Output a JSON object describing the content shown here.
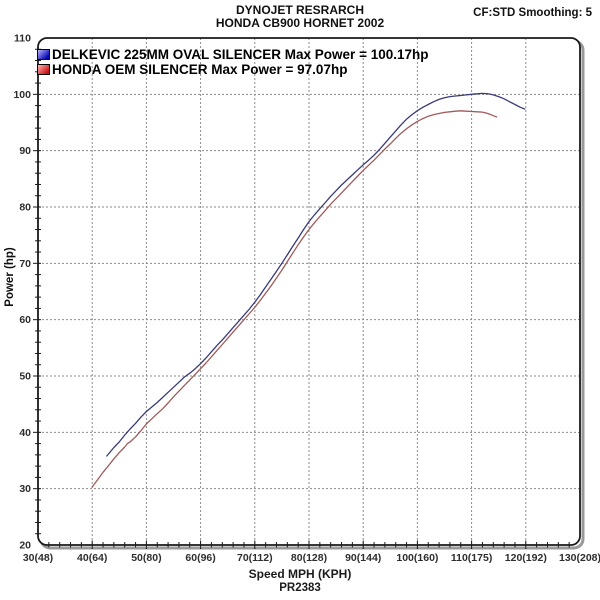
{
  "header": {
    "title_line1": "DYNOJET RESRARCH",
    "title_line2": "HONDA CB900 HORNET 2002",
    "smoothing_label": "CF:STD Smoothing: 5"
  },
  "footer": {
    "xlabel": "Speed MPH (KPH)",
    "run_id": "PR2383"
  },
  "chart_data": {
    "type": "line",
    "title": "DYNOJET RESRARCH / HONDA CB900 HORNET 2002",
    "xlabel": "Speed MPH (KPH)",
    "ylabel": "Power (hp)",
    "xlim": [
      30,
      130
    ],
    "ylim": [
      20,
      110
    ],
    "grid": "dotted gray at every major tick",
    "legend_position": "top-left inside plot",
    "x_ticks": [
      {
        "mph": 30,
        "label": "30(48)"
      },
      {
        "mph": 40,
        "label": "40(64)"
      },
      {
        "mph": 50,
        "label": "50(80)"
      },
      {
        "mph": 60,
        "label": "60(96)"
      },
      {
        "mph": 70,
        "label": "70(112)"
      },
      {
        "mph": 80,
        "label": "80(128)"
      },
      {
        "mph": 90,
        "label": "90(144)"
      },
      {
        "mph": 100,
        "label": "100(160)"
      },
      {
        "mph": 110,
        "label": "110(175)"
      },
      {
        "mph": 120,
        "label": "120(192)"
      },
      {
        "mph": 130,
        "label": "130(208)"
      }
    ],
    "y_ticks": [
      {
        "hp": 20,
        "label": "20"
      },
      {
        "hp": 30,
        "label": "30"
      },
      {
        "hp": 40,
        "label": "40"
      },
      {
        "hp": 50,
        "label": "50"
      },
      {
        "hp": 60,
        "label": "60"
      },
      {
        "hp": 70,
        "label": "70"
      },
      {
        "hp": 80,
        "label": "80"
      },
      {
        "hp": 90,
        "label": "90"
      },
      {
        "hp": 100,
        "label": "100"
      },
      {
        "hp": 110,
        "label": "110"
      }
    ],
    "series": [
      {
        "name": "DELKEVIC 225MM OVAL SILENCER",
        "legend": "DELKEVIC 225MM OVAL SILENCER Max Power = 100.17hp",
        "max_power_hp": 100.17,
        "color": "#3a3a78",
        "swatch": [
          "#b8b8ff",
          "#0000b0"
        ],
        "points": [
          [
            42.7,
            35.8
          ],
          [
            44,
            37.3
          ],
          [
            45,
            38.3
          ],
          [
            46,
            39.5
          ],
          [
            47,
            40.6
          ],
          [
            48,
            41.6
          ],
          [
            49,
            42.7
          ],
          [
            50,
            43.7
          ],
          [
            51,
            44.5
          ],
          [
            52,
            45.3
          ],
          [
            53,
            46.2
          ],
          [
            54,
            47.1
          ],
          [
            55,
            48.0
          ],
          [
            56,
            48.9
          ],
          [
            57,
            49.8
          ],
          [
            58,
            50.5
          ],
          [
            59,
            51.3
          ],
          [
            60,
            52.2
          ],
          [
            61,
            53.2
          ],
          [
            62,
            54.3
          ],
          [
            63,
            55.4
          ],
          [
            64,
            56.4
          ],
          [
            65,
            57.5
          ],
          [
            66,
            58.6
          ],
          [
            67,
            59.7
          ],
          [
            68,
            60.8
          ],
          [
            69,
            61.9
          ],
          [
            70,
            63.1
          ],
          [
            71,
            64.4
          ],
          [
            72,
            65.8
          ],
          [
            73,
            67.2
          ],
          [
            74,
            68.6
          ],
          [
            75,
            70.0
          ],
          [
            76,
            71.5
          ],
          [
            77,
            73.0
          ],
          [
            78,
            74.5
          ],
          [
            79,
            76.0
          ],
          [
            80,
            77.4
          ],
          [
            81,
            78.6
          ],
          [
            82,
            79.7
          ],
          [
            83,
            80.8
          ],
          [
            84,
            81.9
          ],
          [
            85,
            82.9
          ],
          [
            86,
            83.9
          ],
          [
            87,
            84.8
          ],
          [
            88,
            85.7
          ],
          [
            89,
            86.6
          ],
          [
            90,
            87.5
          ],
          [
            91,
            88.3
          ],
          [
            92,
            89.2
          ],
          [
            93,
            90.2
          ],
          [
            94,
            91.3
          ],
          [
            95,
            92.4
          ],
          [
            96,
            93.5
          ],
          [
            97,
            94.6
          ],
          [
            98,
            95.6
          ],
          [
            99,
            96.4
          ],
          [
            100,
            97.1
          ],
          [
            101,
            97.7
          ],
          [
            102,
            98.2
          ],
          [
            103,
            98.7
          ],
          [
            104,
            99.1
          ],
          [
            105,
            99.4
          ],
          [
            106,
            99.6
          ],
          [
            107,
            99.7
          ],
          [
            108,
            99.8
          ],
          [
            109,
            99.9
          ],
          [
            110,
            100.0
          ],
          [
            111,
            100.1
          ],
          [
            112,
            100.17
          ],
          [
            113,
            100.1
          ],
          [
            114,
            99.9
          ],
          [
            115,
            99.6
          ],
          [
            116,
            99.2
          ],
          [
            117,
            98.7
          ],
          [
            118,
            98.2
          ],
          [
            119,
            97.7
          ],
          [
            119.8,
            97.4
          ]
        ]
      },
      {
        "name": "HONDA OEM SILENCER",
        "legend": "HONDA OEM SILENCER Max Power = 97.07hp",
        "max_power_hp": 97.07,
        "color": "#a05a5a",
        "swatch": [
          "#ffb8b8",
          "#cc1010"
        ],
        "points": [
          [
            40,
            30.3
          ],
          [
            41,
            31.6
          ],
          [
            42,
            32.9
          ],
          [
            43,
            34.1
          ],
          [
            44,
            35.3
          ],
          [
            45,
            36.4
          ],
          [
            46,
            37.4
          ],
          [
            46.5,
            38.0
          ],
          [
            47,
            38.3
          ],
          [
            48,
            39.2
          ],
          [
            49,
            40.3
          ],
          [
            50,
            41.5
          ],
          [
            51,
            42.4
          ],
          [
            52,
            43.3
          ],
          [
            53,
            44.2
          ],
          [
            54,
            45.2
          ],
          [
            55,
            46.3
          ],
          [
            56,
            47.3
          ],
          [
            57,
            48.3
          ],
          [
            58,
            49.3
          ],
          [
            59,
            50.3
          ],
          [
            60,
            51.3
          ],
          [
            61,
            52.3
          ],
          [
            62,
            53.4
          ],
          [
            63,
            54.5
          ],
          [
            64,
            55.6
          ],
          [
            65,
            56.7
          ],
          [
            66,
            57.8
          ],
          [
            67,
            58.9
          ],
          [
            68,
            60.0
          ],
          [
            69,
            61.1
          ],
          [
            70,
            62.2
          ],
          [
            71,
            63.4
          ],
          [
            72,
            64.7
          ],
          [
            73,
            66.0
          ],
          [
            74,
            67.4
          ],
          [
            75,
            68.8
          ],
          [
            76,
            70.3
          ],
          [
            77,
            71.8
          ],
          [
            78,
            73.3
          ],
          [
            79,
            74.7
          ],
          [
            80,
            76.0
          ],
          [
            81,
            77.2
          ],
          [
            82,
            78.3
          ],
          [
            83,
            79.4
          ],
          [
            84,
            80.5
          ],
          [
            85,
            81.5
          ],
          [
            86,
            82.5
          ],
          [
            87,
            83.5
          ],
          [
            88,
            84.5
          ],
          [
            89,
            85.5
          ],
          [
            90,
            86.5
          ],
          [
            91,
            87.4
          ],
          [
            92,
            88.3
          ],
          [
            93,
            89.3
          ],
          [
            94,
            90.3
          ],
          [
            95,
            91.2
          ],
          [
            96,
            92.2
          ],
          [
            97,
            93.1
          ],
          [
            98,
            93.9
          ],
          [
            99,
            94.6
          ],
          [
            100,
            95.2
          ],
          [
            101,
            95.7
          ],
          [
            102,
            96.1
          ],
          [
            103,
            96.4
          ],
          [
            104,
            96.6
          ],
          [
            105,
            96.8
          ],
          [
            106,
            96.9
          ],
          [
            107,
            97.0
          ],
          [
            108,
            97.07
          ],
          [
            109,
            97.0
          ],
          [
            110,
            96.95
          ],
          [
            111,
            96.9
          ],
          [
            112,
            96.85
          ],
          [
            113,
            96.6
          ],
          [
            114,
            96.2
          ],
          [
            114.6,
            96.0
          ]
        ]
      }
    ]
  }
}
